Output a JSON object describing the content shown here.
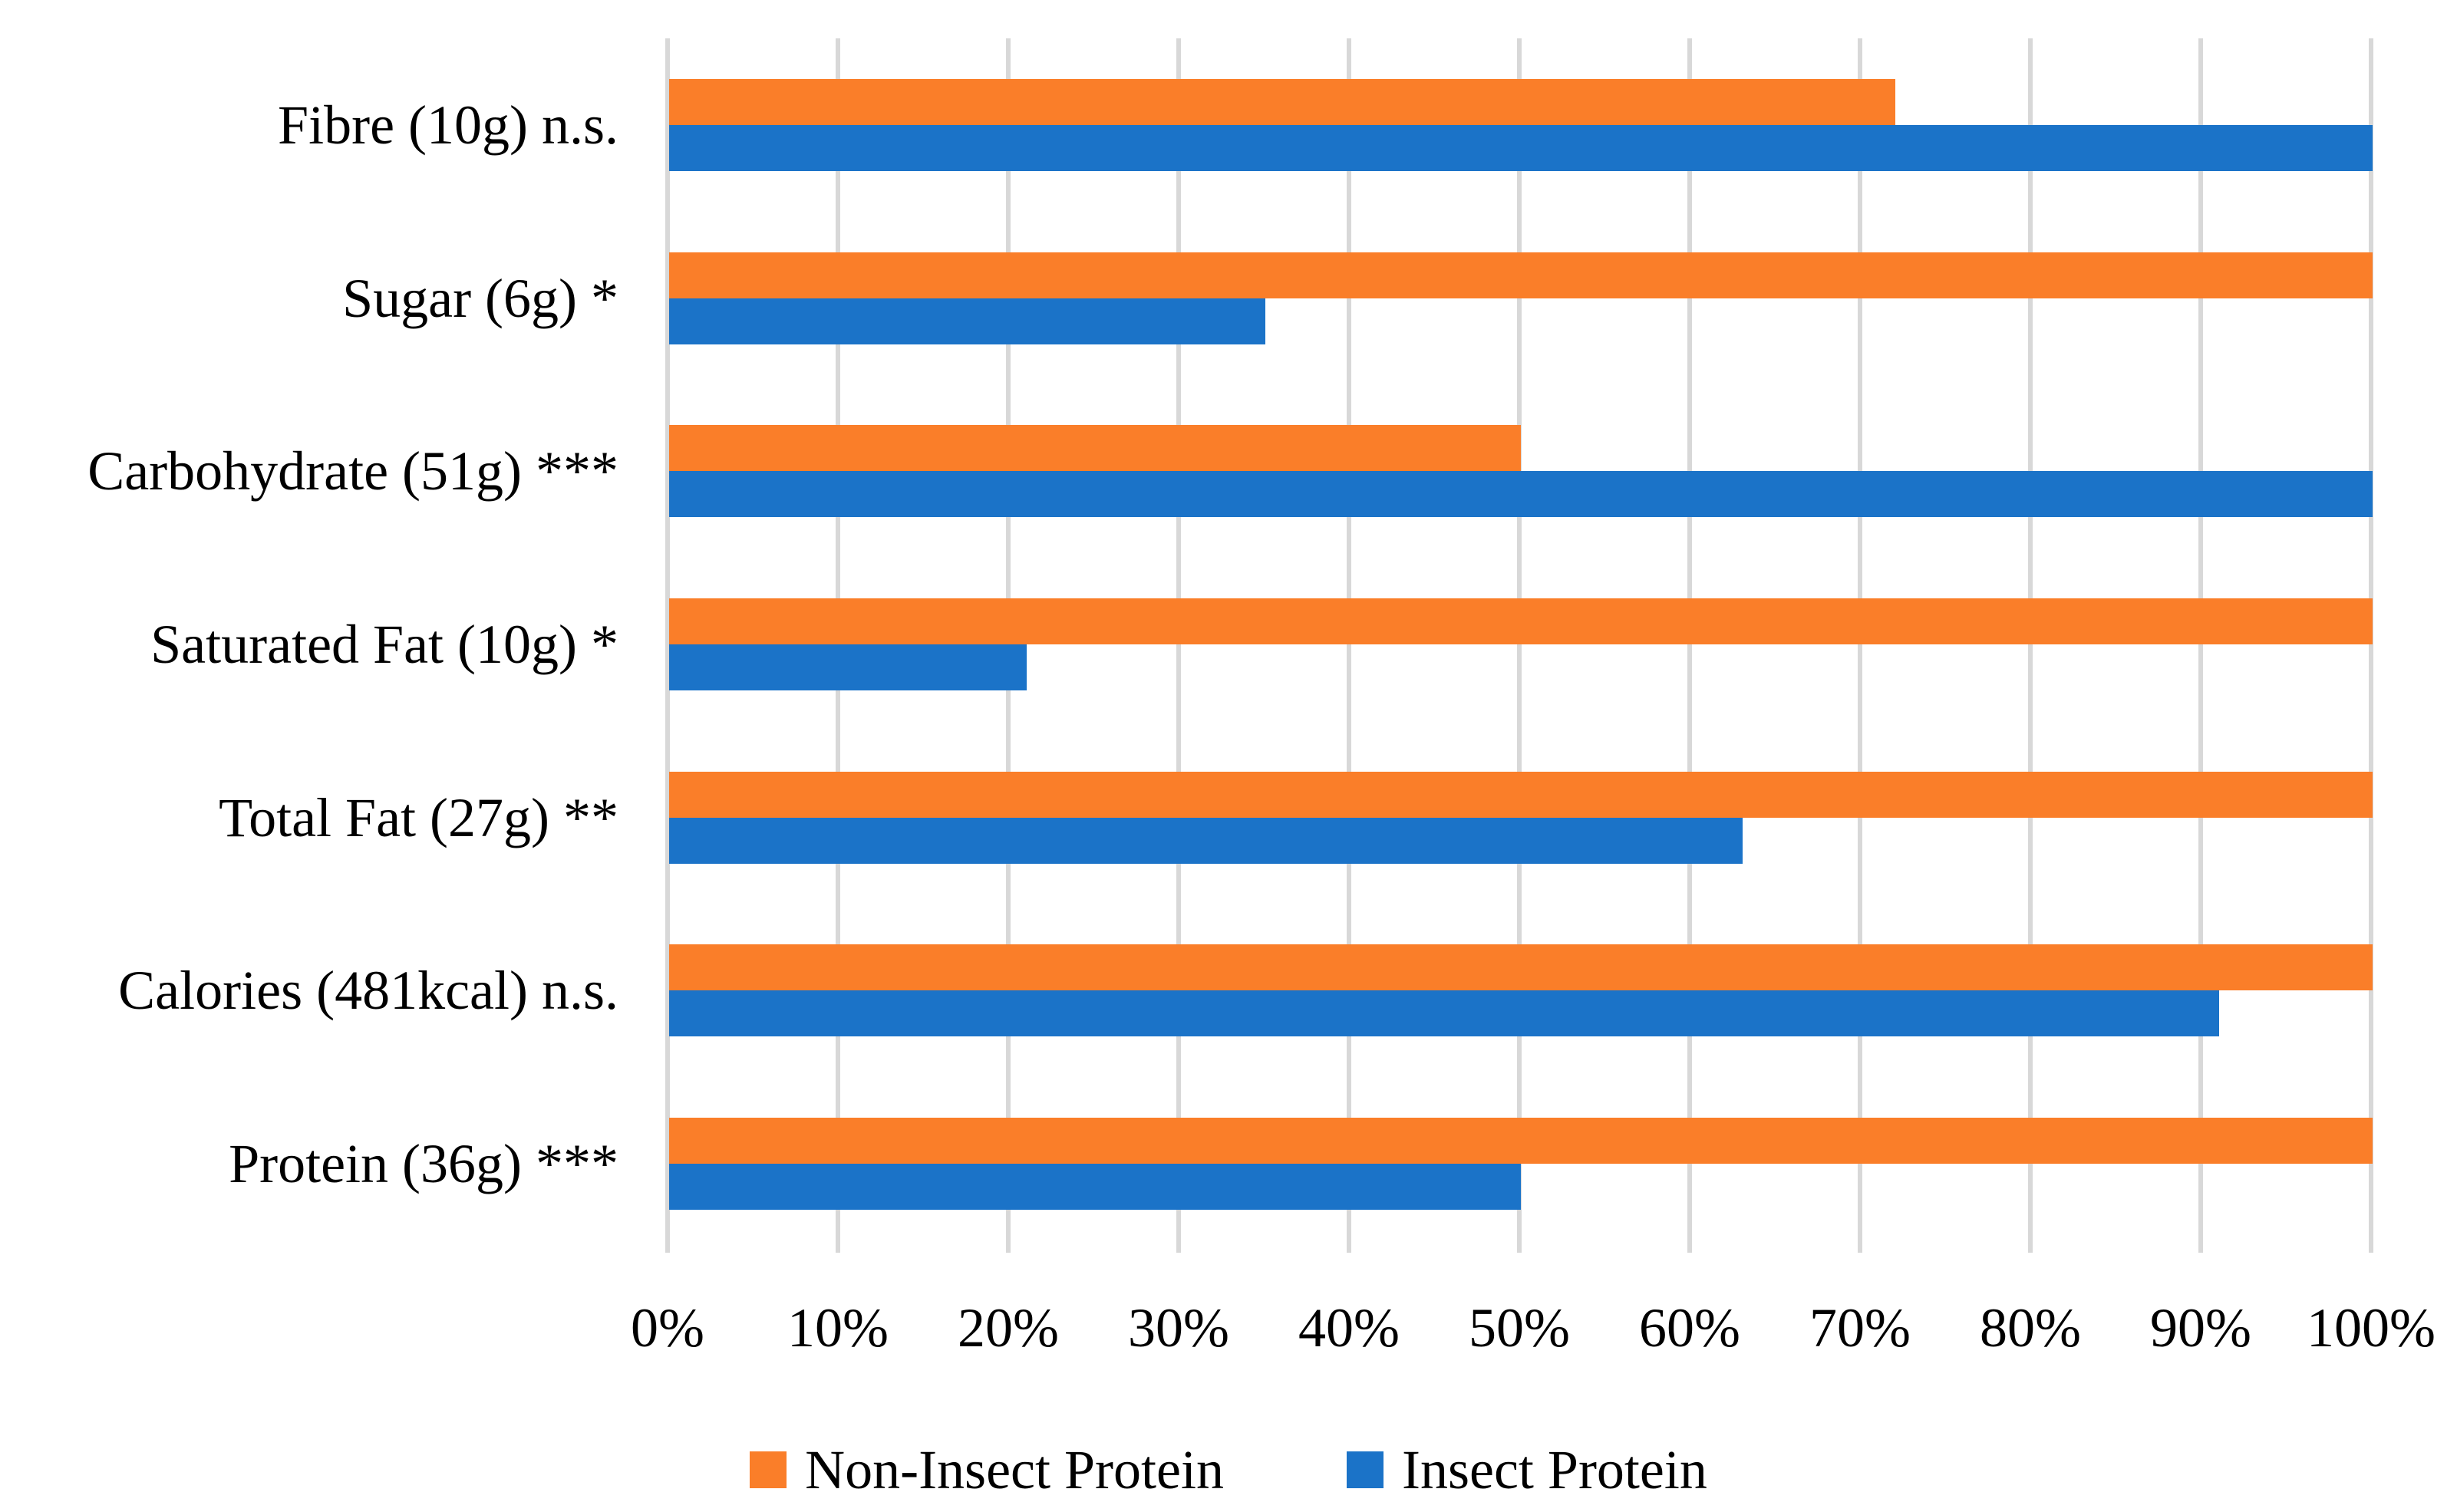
{
  "chart_data": {
    "type": "bar",
    "orientation": "horizontal",
    "title": "",
    "xlabel": "",
    "ylabel": "",
    "categories_top_to_bottom": [
      "Fibre (10g) n.s.",
      "Sugar (6g) *",
      "Carbohydrate (51g) ***",
      "Saturated Fat (10g) *",
      "Total Fat (27g) **",
      "Calories (481kcal) n.s.",
      "Protein (36g) ***"
    ],
    "series": [
      {
        "name": "Non-Insect Protein",
        "color": "#FA7E29",
        "values": [
          72,
          100,
          50,
          100,
          100,
          100,
          100
        ]
      },
      {
        "name": "Insect Protein",
        "color": "#1B73C8",
        "values": [
          100,
          35,
          100,
          21,
          63,
          91,
          50
        ]
      }
    ],
    "x_axis": {
      "min": 0,
      "max": 100,
      "tick_labels": [
        "0%",
        "10%",
        "20%",
        "30%",
        "40%",
        "50%",
        "60%",
        "70%",
        "80%",
        "90%",
        "100%"
      ],
      "grid": true,
      "unit": "%"
    },
    "legend": {
      "position": "bottom",
      "entries": [
        "Non-Insect Protein",
        "Insect Protein"
      ]
    },
    "gridline_color": "#D8D8D8",
    "text_color": "#000000",
    "background_color": "#FFFFFF"
  }
}
